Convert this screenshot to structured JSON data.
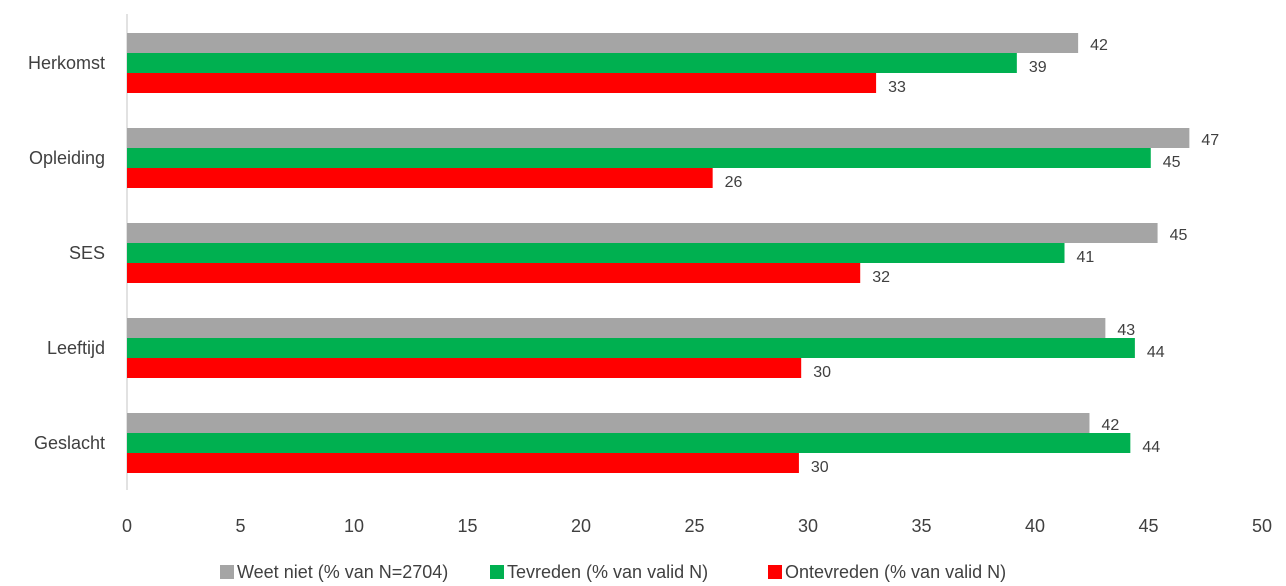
{
  "chart_data": {
    "type": "bar",
    "orientation": "horizontal",
    "title": "",
    "xlabel": "",
    "ylabel": "",
    "xlim": [
      0,
      50
    ],
    "x_ticks": [
      0,
      5,
      10,
      15,
      20,
      25,
      30,
      35,
      40,
      45,
      50
    ],
    "grid": false,
    "legend_position": "bottom",
    "categories": [
      "Herkomst",
      "Opleiding",
      "SES",
      "Leeftijd",
      "Geslacht"
    ],
    "series": [
      {
        "name": "Weet niet (% van N=2704)",
        "color": "#a5a5a5",
        "values": [
          41.9,
          46.8,
          45.4,
          43.1,
          42.4
        ],
        "labels": [
          "42",
          "47",
          "45",
          "43",
          "42"
        ]
      },
      {
        "name": "Tevreden (% van valid N)",
        "color": "#00b050",
        "values": [
          39.2,
          45.1,
          41.3,
          44.4,
          44.2
        ],
        "labels": [
          "39",
          "45",
          "41",
          "44",
          "44"
        ]
      },
      {
        "name": "Ontevreden (% van valid N)",
        "color": "#ff0000",
        "values": [
          33.0,
          25.8,
          32.3,
          29.7,
          29.6
        ],
        "labels": [
          "33",
          "26",
          "32",
          "30",
          "30"
        ]
      }
    ]
  }
}
